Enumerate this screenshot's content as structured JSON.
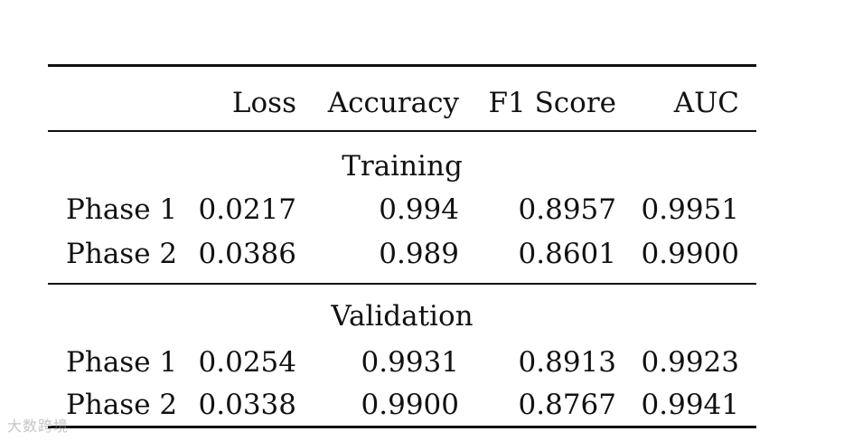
{
  "table": {
    "headers": {
      "label": "",
      "loss": "Loss",
      "accuracy": "Accuracy",
      "f1": "F1 Score",
      "auc": "AUC"
    },
    "sections": [
      {
        "title": "Training",
        "rows": [
          {
            "label": "Phase 1",
            "loss": "0.0217",
            "accuracy": "0.994",
            "f1": "0.8957",
            "auc": "0.9951"
          },
          {
            "label": "Phase 2",
            "loss": "0.0386",
            "accuracy": "0.989",
            "f1": "0.8601",
            "auc": "0.9900"
          }
        ]
      },
      {
        "title": "Validation",
        "rows": [
          {
            "label": "Phase 1",
            "loss": "0.0254",
            "accuracy": "0.9931",
            "f1": "0.8913",
            "auc": "0.9923"
          },
          {
            "label": "Phase 2",
            "loss": "0.0338",
            "accuracy": "0.9900",
            "f1": "0.8767",
            "auc": "0.9941"
          }
        ]
      }
    ]
  },
  "watermark": "大数跨境"
}
